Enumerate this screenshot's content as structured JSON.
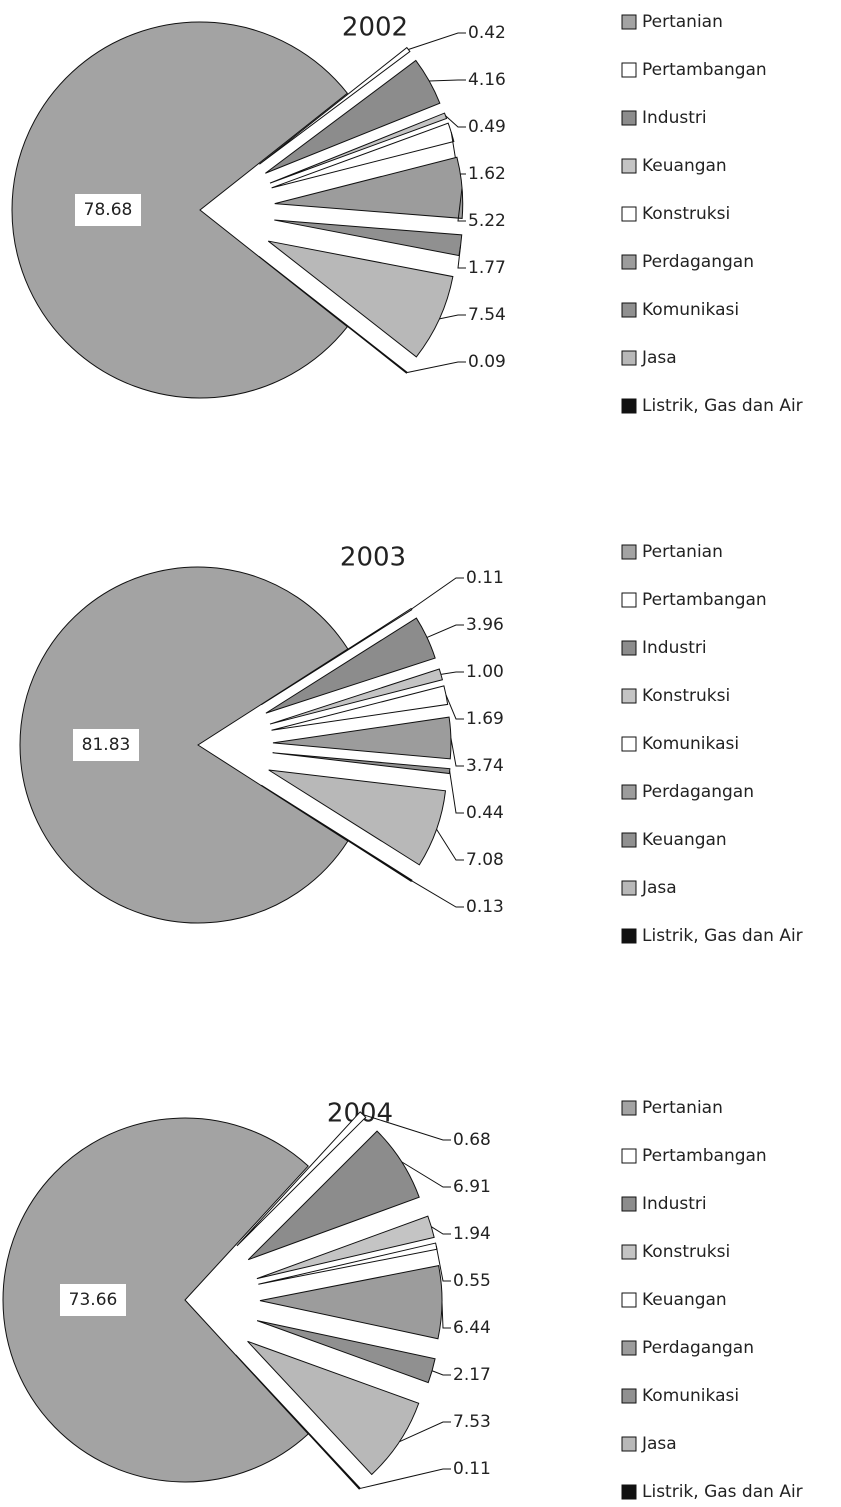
{
  "chart_data": [
    {
      "type": "pie",
      "title": "2002",
      "categories": [
        "Pertanian",
        "Pertambangan",
        "Industri",
        "Keuangan",
        "Konstruksi",
        "Perdagangan",
        "Komunikasi",
        "Jasa",
        "Listrik, Gas dan Air"
      ],
      "values": [
        78.68,
        0.42,
        4.16,
        0.49,
        1.62,
        5.22,
        1.77,
        7.54,
        0.09
      ],
      "colors": [
        "#a3a3a3",
        "#ffffff",
        "#8c8c8c",
        "#c4c4c4",
        "#ffffff",
        "#9c9c9c",
        "#909090",
        "#b8b8b8",
        "#111111"
      ]
    },
    {
      "type": "pie",
      "title": "2003",
      "categories": [
        "Pertanian",
        "Pertambangan",
        "Industri",
        "Konstruksi",
        "Komunikasi",
        "Perdagangan",
        "Keuangan",
        "Jasa",
        "Listrik, Gas dan Air"
      ],
      "values": [
        81.83,
        0.11,
        3.96,
        1.0,
        1.69,
        3.74,
        0.44,
        7.08,
        0.13
      ],
      "value_labels": [
        "81.83",
        "0.11",
        "3.96",
        "1.00",
        "1.69",
        "3.74",
        "0.44",
        "7.08",
        "0.13"
      ],
      "colors": [
        "#a3a3a3",
        "#ffffff",
        "#8c8c8c",
        "#c4c4c4",
        "#ffffff",
        "#9c9c9c",
        "#909090",
        "#b8b8b8",
        "#111111"
      ]
    },
    {
      "type": "pie",
      "title": "2004",
      "categories": [
        "Pertanian",
        "Pertambangan",
        "Industri",
        "Konstruksi",
        "Keuangan",
        "Perdagangan",
        "Komunikasi",
        "Jasa",
        "Listrik, Gas dan Air"
      ],
      "values": [
        73.66,
        0.68,
        6.91,
        1.94,
        0.55,
        6.44,
        2.17,
        7.53,
        0.11
      ],
      "colors": [
        "#a3a3a3",
        "#ffffff",
        "#8c8c8c",
        "#c4c4c4",
        "#ffffff",
        "#9c9c9c",
        "#909090",
        "#b8b8b8",
        "#111111"
      ]
    }
  ]
}
